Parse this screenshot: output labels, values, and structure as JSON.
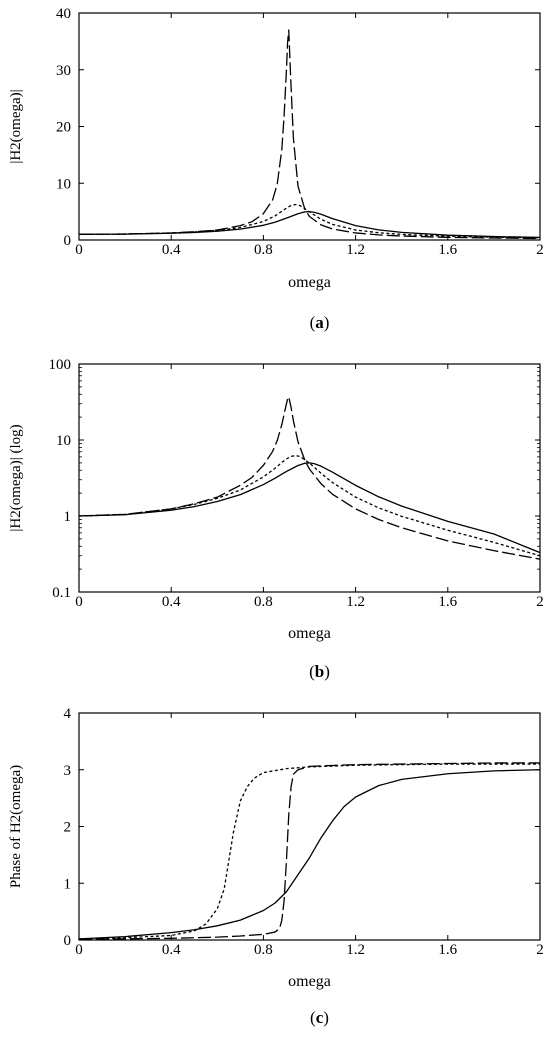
{
  "chart_data": [
    {
      "type": "line",
      "caption": "a",
      "xlabel": "omega",
      "ylabel": "|H2(omega)|",
      "xlim": [
        0,
        2
      ],
      "ylim": [
        0,
        40
      ],
      "yscale": "linear",
      "xticks": [
        "0",
        "0.4",
        "0.8",
        "1.2",
        "1.6",
        "2"
      ],
      "xtick_values": [
        0,
        0.4,
        0.8,
        1.2,
        1.6,
        2
      ],
      "yticks": [
        "0",
        "10",
        "20",
        "30",
        "40"
      ],
      "ytick_values": [
        0,
        10,
        20,
        30,
        40
      ],
      "grid": false,
      "series": [
        {
          "style": "solid",
          "x": [
            0,
            0.2,
            0.4,
            0.5,
            0.6,
            0.7,
            0.8,
            0.85,
            0.9,
            0.95,
            0.98,
            1.0,
            1.02,
            1.05,
            1.1,
            1.2,
            1.3,
            1.4,
            1.6,
            1.8,
            2.0
          ],
          "y": [
            1.0,
            1.04,
            1.19,
            1.33,
            1.55,
            1.91,
            2.59,
            3.13,
            3.86,
            4.62,
            4.95,
            5.0,
            4.89,
            4.53,
            3.77,
            2.53,
            1.79,
            1.35,
            0.85,
            0.61,
            0.45
          ]
        },
        {
          "style": "short-dash",
          "x": [
            0,
            0.2,
            0.4,
            0.5,
            0.6,
            0.7,
            0.8,
            0.85,
            0.88,
            0.9,
            0.92,
            0.94,
            0.96,
            1.0,
            1.05,
            1.1,
            1.2,
            1.3,
            1.4,
            1.6,
            1.8,
            2.0
          ],
          "y": [
            1.0,
            1.05,
            1.24,
            1.42,
            1.71,
            2.2,
            3.27,
            4.23,
            5.06,
            5.63,
            6.09,
            6.25,
            6.05,
            4.96,
            3.65,
            2.75,
            1.77,
            1.28,
            0.99,
            0.67,
            0.49,
            0.38
          ]
        },
        {
          "style": "long-dash",
          "x": [
            0,
            0.2,
            0.4,
            0.5,
            0.6,
            0.7,
            0.75,
            0.8,
            0.84,
            0.86,
            0.88,
            0.89,
            0.9,
            0.905,
            0.91,
            0.92,
            0.93,
            0.95,
            0.98,
            1.0,
            1.05,
            1.1,
            1.2,
            1.3,
            1.4,
            1.6,
            1.8,
            2.0
          ],
          "y": [
            1.0,
            1.05,
            1.24,
            1.45,
            1.77,
            2.54,
            3.21,
            4.64,
            7.07,
            9.84,
            16.0,
            22.0,
            30.0,
            34.8,
            37.0,
            27.0,
            18.0,
            9.5,
            5.4,
            4.14,
            2.66,
            1.93,
            1.24,
            0.9,
            0.7,
            0.47,
            0.35,
            0.27
          ]
        }
      ]
    },
    {
      "type": "line",
      "caption": "b",
      "xlabel": "omega",
      "ylabel": "|H2(omega)| (log)",
      "xlim": [
        0,
        2
      ],
      "ylim": [
        0.1,
        100
      ],
      "yscale": "log",
      "xticks": [
        "0",
        "0.4",
        "0.8",
        "1.2",
        "1.6",
        "2"
      ],
      "xtick_values": [
        0,
        0.4,
        0.8,
        1.2,
        1.6,
        2
      ],
      "yticks": [
        "0.1",
        "1",
        "10",
        "100"
      ],
      "ytick_values": [
        0.1,
        1,
        10,
        100
      ],
      "grid": false,
      "series": [
        {
          "style": "solid",
          "x": [
            0,
            0.2,
            0.4,
            0.5,
            0.6,
            0.7,
            0.8,
            0.85,
            0.9,
            0.95,
            0.98,
            1.0,
            1.02,
            1.05,
            1.1,
            1.2,
            1.3,
            1.4,
            1.6,
            1.8,
            2.0
          ],
          "y": [
            1.0,
            1.04,
            1.19,
            1.33,
            1.55,
            1.91,
            2.59,
            3.13,
            3.86,
            4.62,
            4.95,
            5.0,
            4.89,
            4.53,
            3.77,
            2.53,
            1.79,
            1.35,
            0.85,
            0.58,
            0.33
          ]
        },
        {
          "style": "short-dash",
          "x": [
            0,
            0.2,
            0.4,
            0.5,
            0.6,
            0.7,
            0.8,
            0.85,
            0.88,
            0.9,
            0.92,
            0.94,
            0.96,
            1.0,
            1.05,
            1.1,
            1.2,
            1.3,
            1.4,
            1.6,
            1.8,
            2.0
          ],
          "y": [
            1.0,
            1.05,
            1.24,
            1.42,
            1.71,
            2.2,
            3.27,
            4.23,
            5.06,
            5.63,
            6.09,
            6.25,
            6.05,
            4.96,
            3.65,
            2.75,
            1.77,
            1.28,
            0.99,
            0.65,
            0.45,
            0.3
          ]
        },
        {
          "style": "long-dash",
          "x": [
            0,
            0.2,
            0.4,
            0.5,
            0.6,
            0.7,
            0.75,
            0.8,
            0.84,
            0.86,
            0.88,
            0.89,
            0.9,
            0.905,
            0.91,
            0.92,
            0.93,
            0.95,
            0.98,
            1.0,
            1.05,
            1.1,
            1.2,
            1.3,
            1.4,
            1.6,
            1.8,
            2.0
          ],
          "y": [
            1.0,
            1.05,
            1.24,
            1.45,
            1.77,
            2.54,
            3.21,
            4.64,
            7.07,
            9.84,
            16.0,
            22.0,
            30.0,
            34.8,
            37.0,
            27.0,
            18.0,
            9.5,
            5.4,
            4.14,
            2.66,
            1.93,
            1.24,
            0.9,
            0.7,
            0.47,
            0.35,
            0.27
          ]
        }
      ]
    },
    {
      "type": "line",
      "caption": "c",
      "xlabel": "omega",
      "ylabel": "Phase of H2(omega)",
      "xlim": [
        0,
        2
      ],
      "ylim": [
        0,
        4
      ],
      "yscale": "linear",
      "xticks": [
        "0",
        "0.4",
        "0.8",
        "1.2",
        "1.6",
        "2"
      ],
      "xtick_values": [
        0,
        0.4,
        0.8,
        1.2,
        1.6,
        2
      ],
      "yticks": [
        "0",
        "1",
        "2",
        "3",
        "4"
      ],
      "ytick_values": [
        0,
        1,
        2,
        3,
        4
      ],
      "grid": false,
      "series": [
        {
          "style": "solid",
          "x": [
            0,
            0.2,
            0.4,
            0.5,
            0.6,
            0.7,
            0.8,
            0.85,
            0.9,
            0.95,
            1.0,
            1.05,
            1.1,
            1.15,
            1.2,
            1.3,
            1.4,
            1.6,
            1.8,
            2.0
          ],
          "y": [
            0.02,
            0.06,
            0.13,
            0.18,
            0.25,
            0.35,
            0.52,
            0.65,
            0.85,
            1.15,
            1.45,
            1.8,
            2.1,
            2.35,
            2.52,
            2.72,
            2.83,
            2.93,
            2.98,
            3.0
          ]
        },
        {
          "style": "short-dash",
          "x": [
            0,
            0.2,
            0.4,
            0.5,
            0.55,
            0.6,
            0.63,
            0.65,
            0.67,
            0.7,
            0.73,
            0.76,
            0.8,
            0.9,
            1.0,
            1.2,
            1.4,
            1.6,
            1.8,
            2.0
          ],
          "y": [
            0.02,
            0.04,
            0.08,
            0.16,
            0.28,
            0.55,
            0.9,
            1.4,
            1.9,
            2.45,
            2.7,
            2.85,
            2.95,
            3.02,
            3.05,
            3.08,
            3.09,
            3.1,
            3.1,
            3.1
          ]
        },
        {
          "style": "long-dash",
          "x": [
            0,
            0.2,
            0.4,
            0.6,
            0.7,
            0.8,
            0.85,
            0.87,
            0.88,
            0.89,
            0.9,
            0.91,
            0.92,
            0.93,
            0.95,
            1.0,
            1.2,
            1.4,
            1.6,
            1.8,
            2.0
          ],
          "y": [
            0.02,
            0.02,
            0.03,
            0.05,
            0.07,
            0.1,
            0.14,
            0.2,
            0.35,
            0.7,
            1.4,
            2.2,
            2.7,
            2.92,
            3.0,
            3.06,
            3.09,
            3.1,
            3.11,
            3.12,
            3.12
          ]
        }
      ]
    }
  ]
}
